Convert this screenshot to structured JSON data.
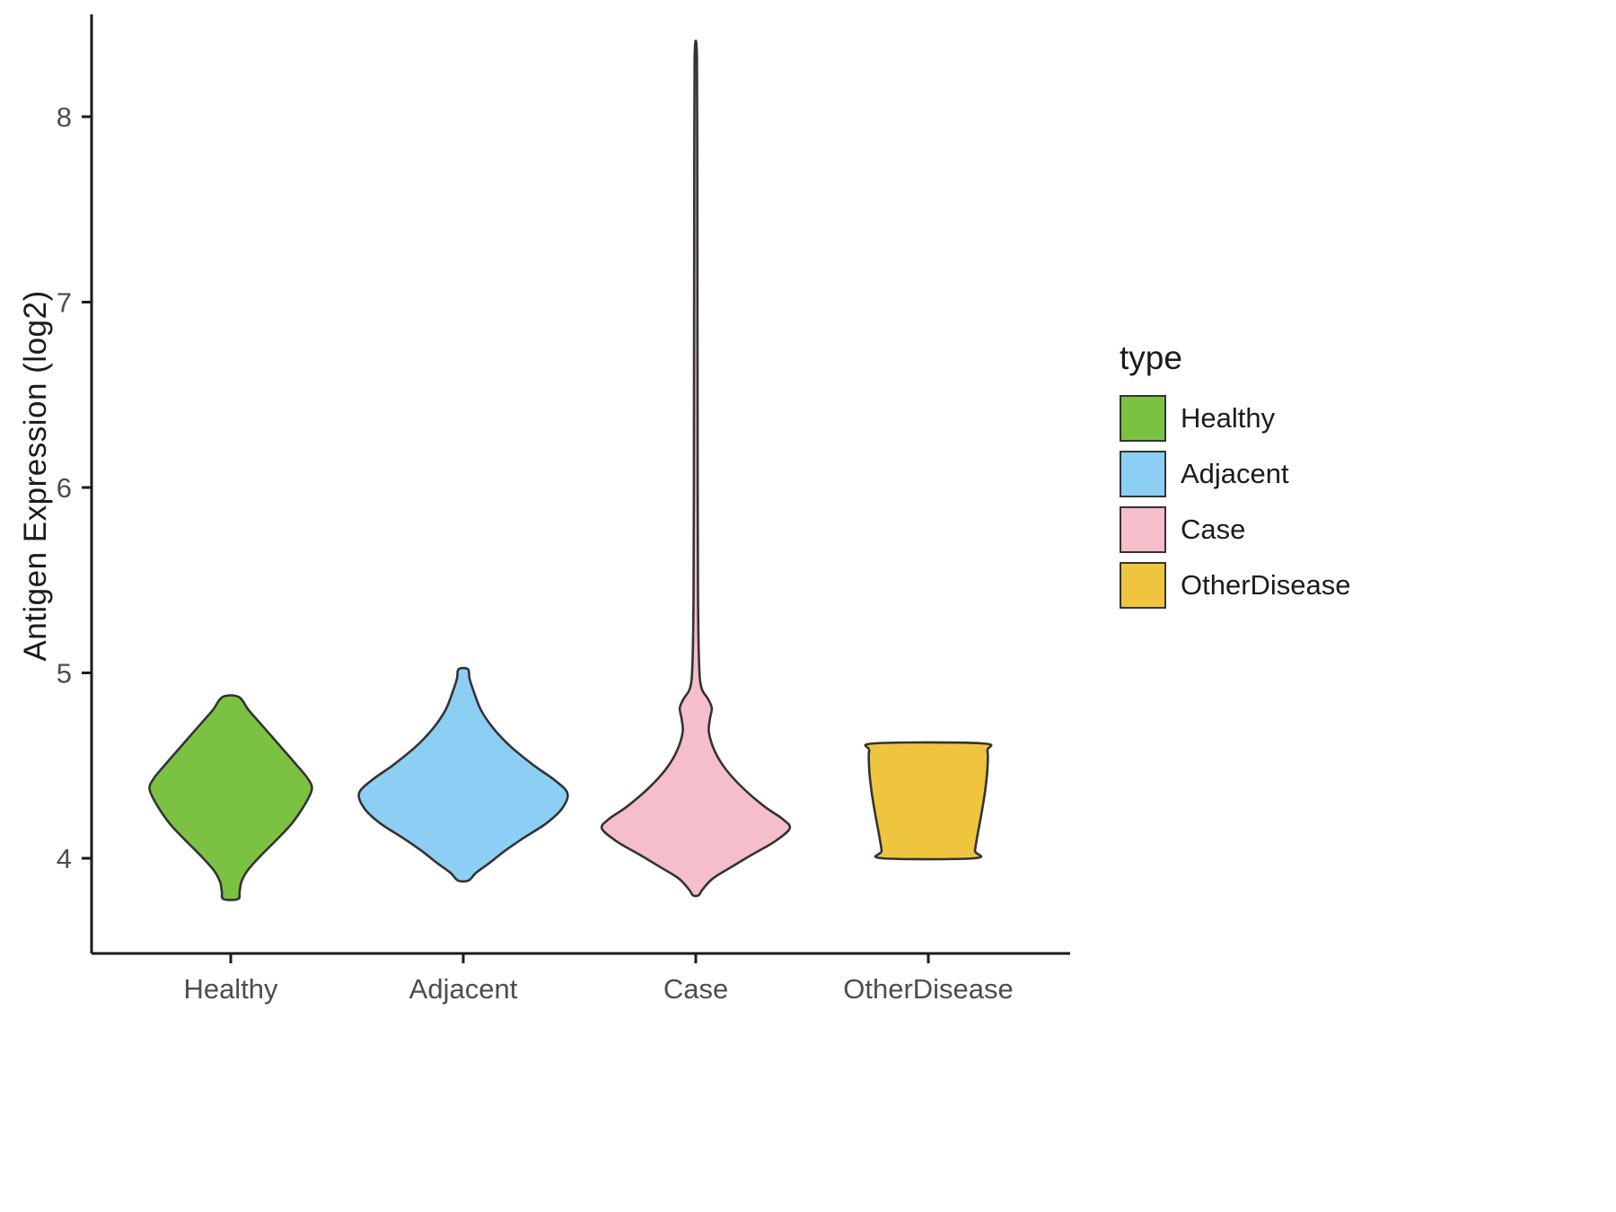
{
  "chart_data": {
    "type": "violin",
    "title": "",
    "xlabel": "",
    "ylabel": "Antigen Expression (log2)",
    "categories": [
      "Healthy",
      "Adjacent",
      "Case",
      "OtherDisease"
    ],
    "y_ticks": [
      4,
      5,
      6,
      7,
      8
    ],
    "ylim": [
      3.6,
      8.5
    ],
    "grid": false,
    "legend": {
      "title": "type",
      "position": "right",
      "entries": [
        {
          "label": "Healthy",
          "color": "#7CC242"
        },
        {
          "label": "Adjacent",
          "color": "#8DCEF4"
        },
        {
          "label": "Case",
          "color": "#F6BECB"
        },
        {
          "label": "OtherDisease",
          "color": "#EFC53F"
        }
      ]
    },
    "series": [
      {
        "name": "Healthy",
        "color": "#7CC242",
        "y_min": 3.78,
        "y_max": 4.87,
        "peak_y": 4.38,
        "max_width": 0.7,
        "profile": [
          [
            4.87,
            0.1
          ],
          [
            4.8,
            0.22
          ],
          [
            4.72,
            0.38
          ],
          [
            4.62,
            0.58
          ],
          [
            4.52,
            0.78
          ],
          [
            4.43,
            0.95
          ],
          [
            4.37,
            1.0
          ],
          [
            4.28,
            0.9
          ],
          [
            4.18,
            0.74
          ],
          [
            4.08,
            0.52
          ],
          [
            4.0,
            0.34
          ],
          [
            3.93,
            0.2
          ],
          [
            3.87,
            0.13
          ],
          [
            3.82,
            0.11
          ],
          [
            3.78,
            0.09
          ]
        ]
      },
      {
        "name": "Adjacent",
        "color": "#8DCEF4",
        "y_min": 3.88,
        "y_max": 5.02,
        "peak_y": 4.35,
        "max_width": 0.9,
        "profile": [
          [
            5.02,
            0.045
          ],
          [
            4.97,
            0.06
          ],
          [
            4.9,
            0.1
          ],
          [
            4.8,
            0.17
          ],
          [
            4.7,
            0.29
          ],
          [
            4.6,
            0.46
          ],
          [
            4.5,
            0.68
          ],
          [
            4.42,
            0.88
          ],
          [
            4.35,
            1.0
          ],
          [
            4.27,
            0.95
          ],
          [
            4.19,
            0.8
          ],
          [
            4.11,
            0.58
          ],
          [
            4.04,
            0.4
          ],
          [
            3.97,
            0.24
          ],
          [
            3.92,
            0.12
          ],
          [
            3.88,
            0.05
          ]
        ]
      },
      {
        "name": "Case",
        "color": "#F6BECB",
        "y_min": 3.8,
        "y_max": 8.32,
        "peak_y": 4.17,
        "max_width": 0.81,
        "profile": [
          [
            8.32,
            0.012
          ],
          [
            7.6,
            0.016
          ],
          [
            6.8,
            0.018
          ],
          [
            6.0,
            0.02
          ],
          [
            5.4,
            0.024
          ],
          [
            5.05,
            0.035
          ],
          [
            4.92,
            0.06
          ],
          [
            4.86,
            0.13
          ],
          [
            4.81,
            0.17
          ],
          [
            4.75,
            0.15
          ],
          [
            4.68,
            0.14
          ],
          [
            4.58,
            0.2
          ],
          [
            4.48,
            0.32
          ],
          [
            4.38,
            0.5
          ],
          [
            4.28,
            0.73
          ],
          [
            4.21,
            0.93
          ],
          [
            4.16,
            1.0
          ],
          [
            4.09,
            0.84
          ],
          [
            4.02,
            0.6
          ],
          [
            3.95,
            0.37
          ],
          [
            3.89,
            0.18
          ],
          [
            3.83,
            0.07
          ],
          [
            3.8,
            0.03
          ]
        ]
      },
      {
        "name": "OtherDisease",
        "color": "#EFC53F",
        "y_min": 4.0,
        "y_max": 4.62,
        "peak_y": 4.5,
        "max_width": 0.51,
        "profile": [
          [
            4.62,
            0.9
          ],
          [
            4.58,
            1.0
          ],
          [
            4.48,
            1.0
          ],
          [
            4.36,
            0.96
          ],
          [
            4.24,
            0.9
          ],
          [
            4.12,
            0.83
          ],
          [
            4.04,
            0.79
          ],
          [
            4.0,
            0.78
          ]
        ]
      }
    ]
  }
}
